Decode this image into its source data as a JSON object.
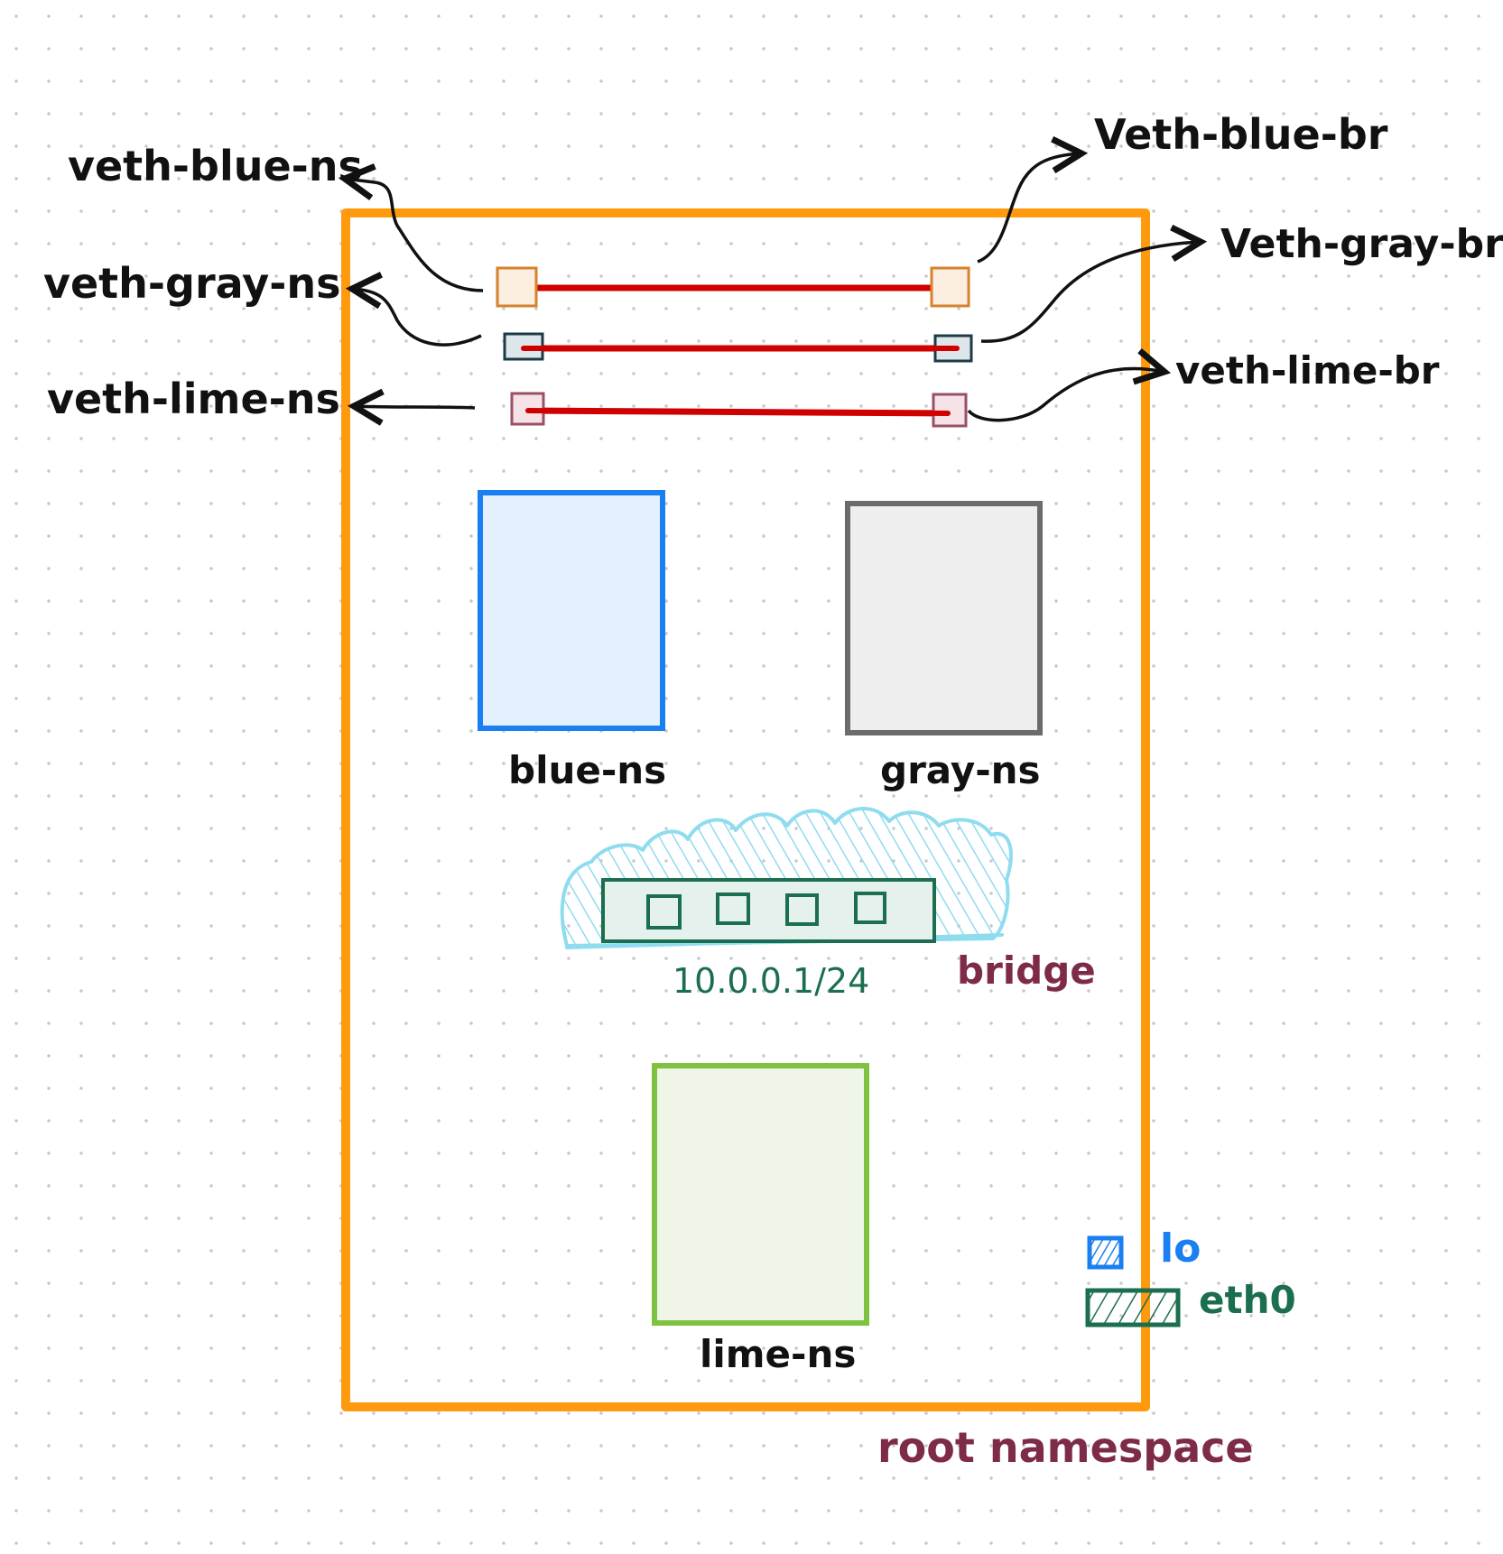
{
  "colors": {
    "root": "#ff9a0e",
    "veth_line": "#d00000",
    "blue": "#1a7ff0",
    "blue_fill": "#e4f0fd",
    "gray": "#6b6b6b",
    "gray_fill": "#eeeeee",
    "lime": "#7fc242",
    "lime_fill": "#eff6e8",
    "bridge": "#1b6e4e",
    "bridge_fill": "#e4f1ec",
    "cloud": "#8fdcef",
    "maroon": "#7e2b4a",
    "ink": "#111111",
    "port_blue": "#d6822d",
    "port_gray": "#1d3b46",
    "port_lime": "#9a5064"
  },
  "labels": {
    "veth_blue_ns": "veth-blue-ns",
    "veth_gray_ns": "veth-gray-ns",
    "veth_lime_ns": "veth-lime-ns",
    "veth_blue_br": "Veth-blue-br",
    "veth_gray_br": "Veth-gray-br",
    "veth_lime_br": "veth-lime-br",
    "blue_ns": "blue-ns",
    "gray_ns": "gray-ns",
    "lime_ns": "lime-ns",
    "bridge_ip": "10.0.0.1/24",
    "bridge": "bridge",
    "root_namespace": "root namespace",
    "legend_lo": "lo",
    "legend_eth0": "eth0"
  }
}
